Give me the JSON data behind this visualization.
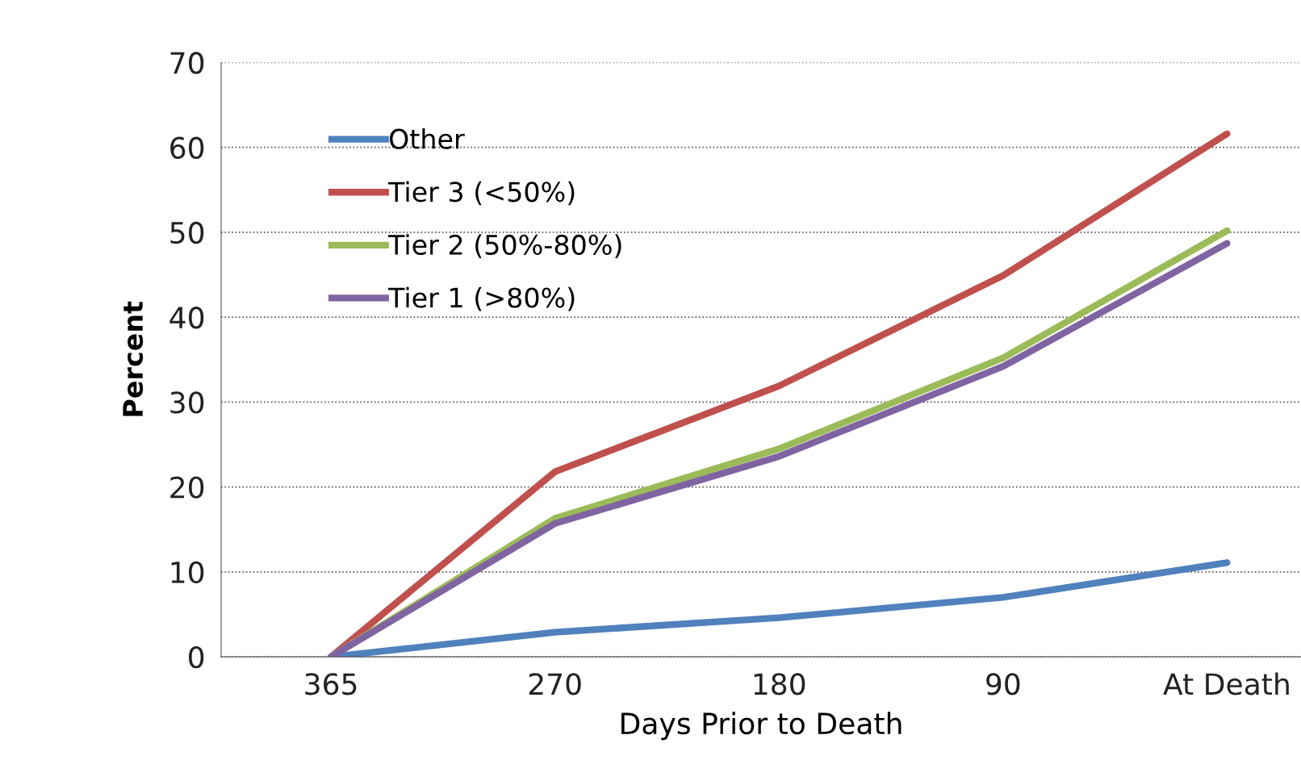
{
  "chart_data": {
    "type": "line",
    "xlabel": "Days Prior to Death",
    "ylabel": "Percent",
    "categories": [
      "365",
      "270",
      "180",
      "90",
      "At Death"
    ],
    "series": [
      {
        "name": "Other",
        "color": "#4f81bd",
        "values": [
          0,
          2.9,
          4.6,
          7.0,
          11.1
        ]
      },
      {
        "name": "Tier 3 (<50%)",
        "color": "#c0504d",
        "values": [
          0,
          21.8,
          31.9,
          44.9,
          61.6
        ]
      },
      {
        "name": "Tier 2 (50%-80%)",
        "color": "#9bbb59",
        "values": [
          0,
          16.3,
          24.5,
          35.2,
          50.2
        ]
      },
      {
        "name": "Tier 1 (>80%)",
        "color": "#8064a2",
        "values": [
          0,
          15.7,
          23.6,
          34.2,
          48.7
        ]
      }
    ],
    "ylim": [
      0,
      70
    ],
    "yticks": [
      0,
      10,
      20,
      30,
      40,
      50,
      60,
      70
    ],
    "grid": "y",
    "legend": "top left",
    "marker": "none",
    "line_style": "solid"
  }
}
